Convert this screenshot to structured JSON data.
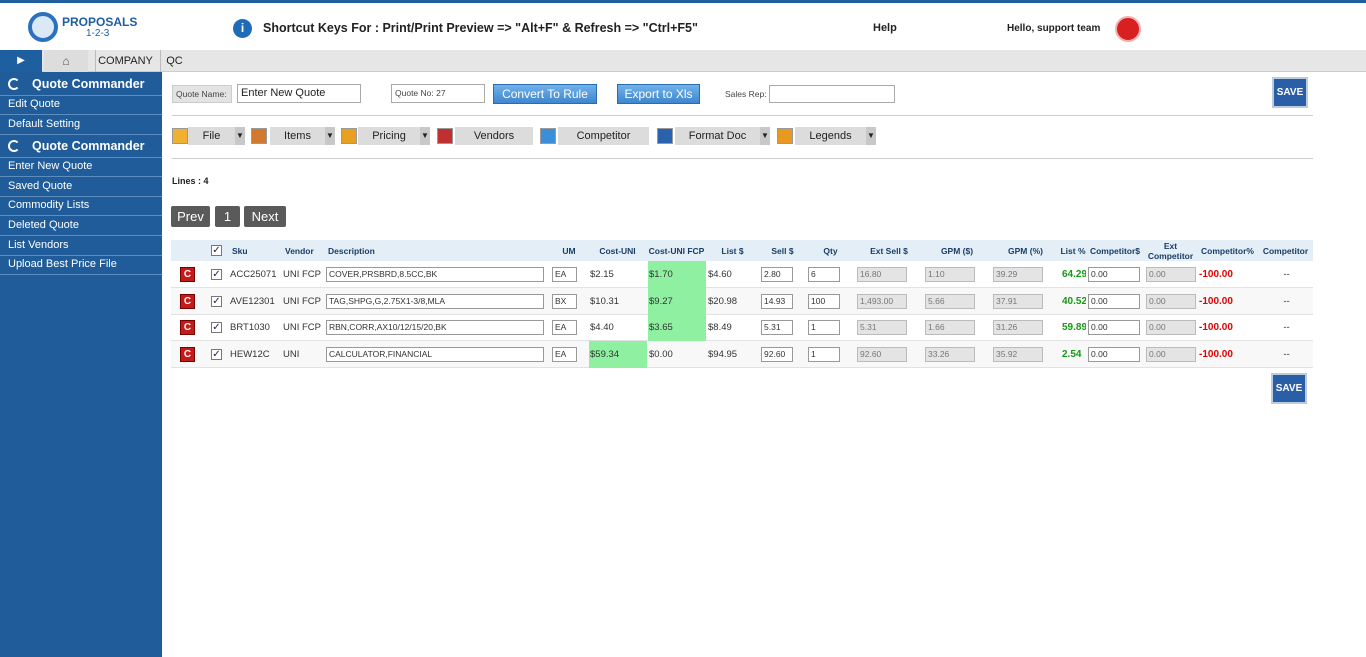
{
  "header": {
    "logo_title": "PROPOSALS",
    "logo_subtitle": "1-2-3",
    "shortcut_info": "Shortcut Keys For : Print/Print Preview => \"Alt+F\" & Refresh => \"Ctrl+F5\"",
    "help": "Help",
    "greeting": "Hello, support team"
  },
  "tabs": [
    "COMPANY",
    "QC"
  ],
  "sidebar": [
    {
      "title": "Quote Commander",
      "items": [
        "Edit Quote",
        "Default Setting"
      ]
    },
    {
      "title": "Quote Commander",
      "items": [
        "Enter New Quote",
        "Saved Quote",
        "Commodity Lists",
        "Deleted Quote",
        "List Vendors",
        "Upload Best Price File"
      ]
    }
  ],
  "form": {
    "quote_name_label": "Quote Name:",
    "quote_name_value": "Enter New Quote",
    "quote_no": "Quote No: 27",
    "convert_button": "Convert To Rule",
    "export_button": "Export to Xls",
    "sales_rep_label": "Sales Rep:",
    "save_label": "SAVE"
  },
  "toolbar": [
    {
      "label": "File",
      "dropdown": true
    },
    {
      "label": "Items",
      "dropdown": true
    },
    {
      "label": "Pricing",
      "dropdown": true
    },
    {
      "label": "Vendors",
      "dropdown": false
    },
    {
      "label": "Competitor",
      "dropdown": false
    },
    {
      "label": "Format Doc",
      "dropdown": true
    },
    {
      "label": "Legends",
      "dropdown": true
    }
  ],
  "lines": "Lines : 4",
  "pager": [
    "Prev",
    "1",
    "Next"
  ],
  "table": {
    "action_icon": "C",
    "columns": [
      "Sku",
      "Vendor",
      "Description",
      "UM",
      "Cost-UNI",
      "Cost-UNI FCP",
      "List $",
      "Sell $",
      "Qty",
      "Ext Sell $",
      "GPM ($)",
      "GPM (%)",
      "List %",
      "Competitor$",
      "Ext Competitor",
      "Competitor%",
      "Competitor"
    ],
    "rows": [
      [
        "ACC25071",
        "UNI FCP",
        "COVER,PRSBRD,8.5CC,BK",
        "EA",
        "$2.15",
        "$1.70",
        "$4.60",
        "2.80",
        "6",
        "16.80",
        "1.10",
        "39.29",
        "64.29",
        "0.00",
        "0.00",
        "-100.00",
        "--"
      ],
      [
        "AVE12301",
        "UNI FCP",
        "TAG,SHPG,G,2.75X1-3/8,MLA",
        "BX",
        "$10.31",
        "$9.27",
        "$20.98",
        "14.93",
        "100",
        "1,493.00",
        "5.66",
        "37.91",
        "40.52",
        "0.00",
        "0.00",
        "-100.00",
        "--"
      ],
      [
        "BRT1030",
        "UNI FCP",
        "RBN,CORR,AX10/12/15/20,BK",
        "EA",
        "$4.40",
        "$3.65",
        "$8.49",
        "5.31",
        "1",
        "5.31",
        "1.66",
        "31.26",
        "59.89",
        "0.00",
        "0.00",
        "-100.00",
        "--"
      ],
      [
        "HEW12C",
        "UNI",
        "CALCULATOR,FINANCIAL",
        "EA",
        "$59.34",
        "$0.00",
        "$94.95",
        "92.60",
        "1",
        "92.60",
        "33.26",
        "35.92",
        "2.54",
        "0.00",
        "0.00",
        "-100.00",
        "--"
      ]
    ]
  }
}
